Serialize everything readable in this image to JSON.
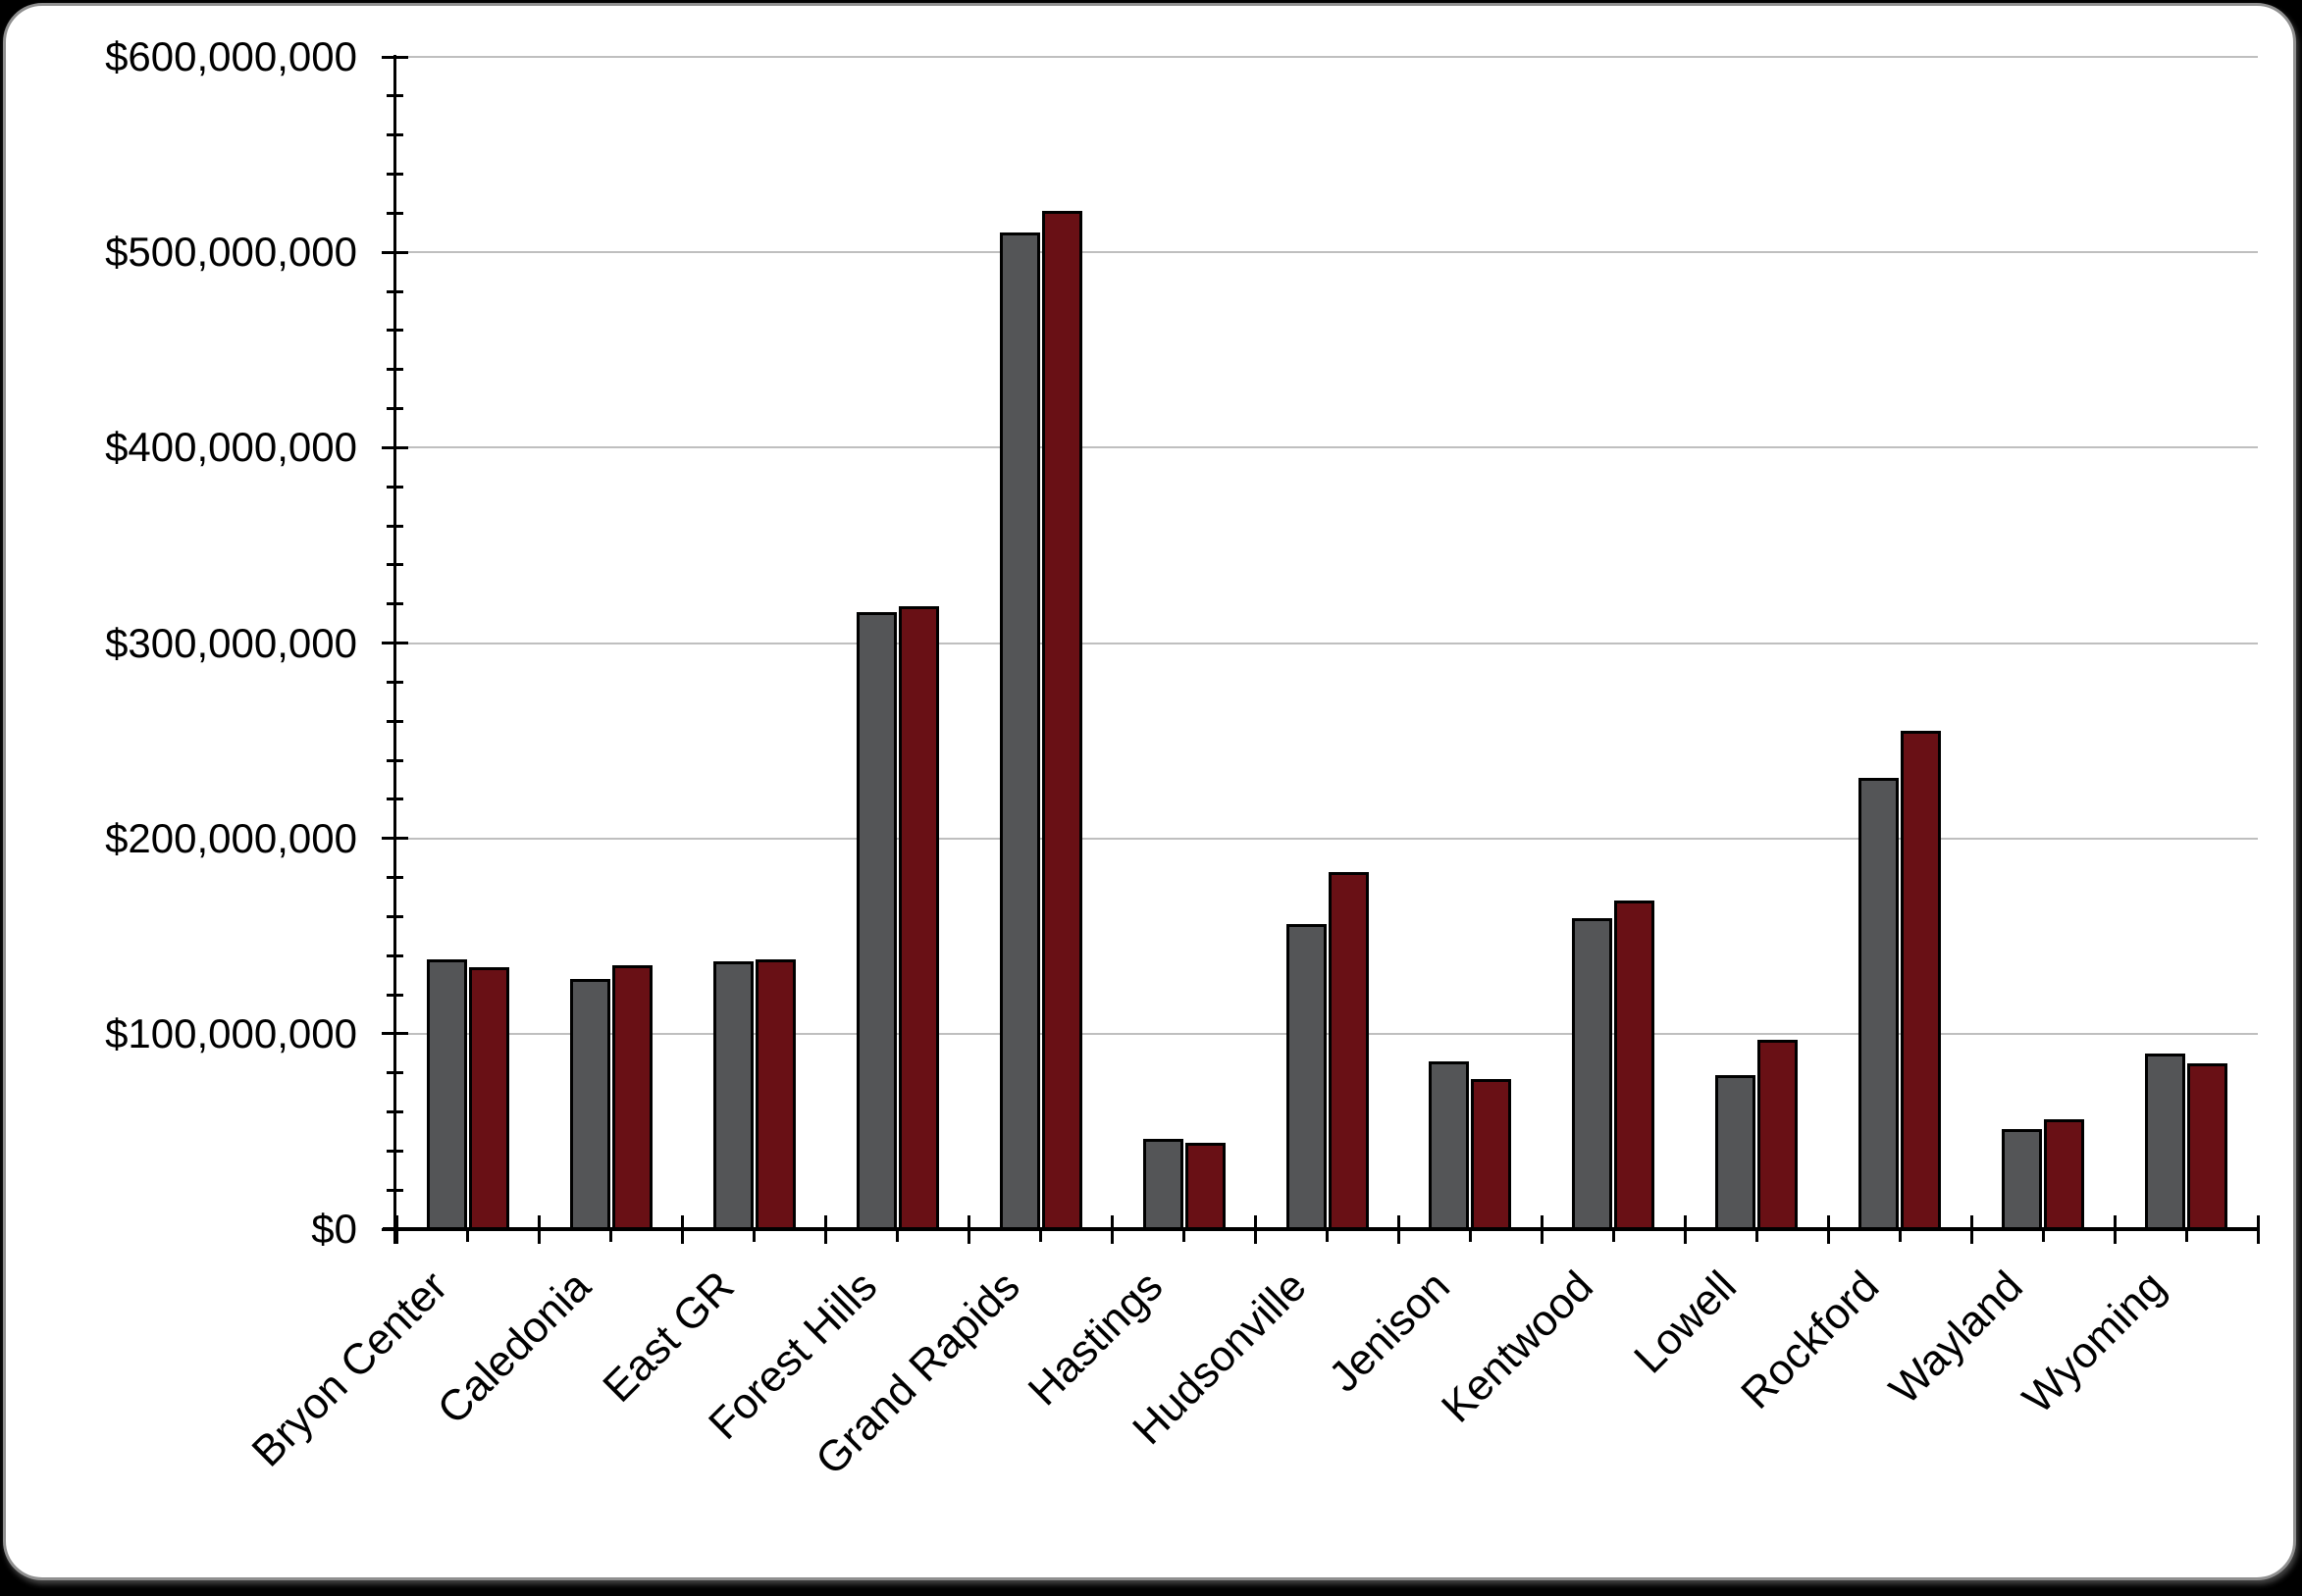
{
  "page": {
    "background_color": "#000000",
    "card_background_color": "#ffffff",
    "card_border_color": "#8f8f8f"
  },
  "chart_data": {
    "type": "bar",
    "title": "",
    "legend": "none",
    "grid": "horizontal-major",
    "gridline_color": "#bfbfbf",
    "axis_color": "#000000",
    "bar_border_color": "#000000",
    "categories": [
      "Bryon Center",
      "Caledonia",
      "East GR",
      "Forest Hills",
      "Grand Rapids",
      "Hastings",
      "Hudsonville",
      "Jenison",
      "Kentwood",
      "Lowell",
      "Rockford",
      "Wayland",
      "Wyoming"
    ],
    "series": [
      {
        "label": "",
        "color": "#545557",
        "values": [
          138000000,
          128000000,
          137000000,
          316000000,
          510000000,
          46000000,
          156000000,
          86000000,
          159000000,
          79000000,
          231000000,
          51000000,
          90000000
        ]
      },
      {
        "label": "",
        "color": "#691015",
        "values": [
          134000000,
          135000000,
          138000000,
          319000000,
          521000000,
          44000000,
          183000000,
          77000000,
          168000000,
          97000000,
          255000000,
          56000000,
          85000000
        ]
      }
    ],
    "y_axis": {
      "min": 0,
      "max": 600000000,
      "major_unit": 100000000,
      "minor_unit": 20000000,
      "tick_labels": [
        "$0",
        "$100,000,000",
        "$200,000,000",
        "$300,000,000",
        "$400,000,000",
        "$500,000,000",
        "$600,000,000"
      ]
    },
    "x_axis": {
      "tick_style": "cross-at-boundaries"
    }
  }
}
